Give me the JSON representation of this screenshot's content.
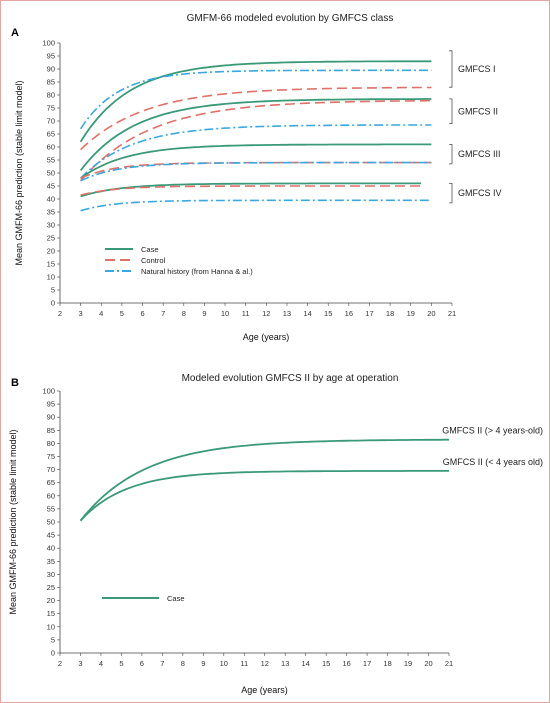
{
  "chart_data": [
    {
      "panel": "A",
      "type": "line",
      "title": "GMFM-66 modeled evolution by GMFCS class",
      "xlabel": "Age (years)",
      "ylabel": "Mean GMFM-66 prediction (stable limit model)",
      "xlim": [
        2,
        21
      ],
      "ylim": [
        0,
        100
      ],
      "xticks": [
        2,
        3,
        4,
        5,
        6,
        7,
        8,
        9,
        10,
        11,
        12,
        13,
        14,
        15,
        16,
        17,
        18,
        19,
        20,
        21
      ],
      "yticks": [
        0,
        5,
        10,
        15,
        20,
        25,
        30,
        35,
        40,
        45,
        50,
        55,
        60,
        65,
        70,
        75,
        80,
        85,
        90,
        95,
        100
      ],
      "legend": {
        "position": "lower-left",
        "entries": [
          {
            "label": "Case",
            "color": "#3a9a78",
            "style": "solid"
          },
          {
            "label": "Control",
            "color": "#e07068",
            "style": "dashed"
          },
          {
            "label": "Natural history (from Hanna & al.)",
            "color": "#3aa8e0",
            "style": "dashdot"
          }
        ]
      },
      "groups": [
        {
          "label": "GMFCS I",
          "ymin": 83,
          "ymax": 97
        },
        {
          "label": "GMFCS II",
          "ymin": 69,
          "ymax": 78.5
        },
        {
          "label": "GMFCS III",
          "ymin": 53.5,
          "ymax": 61
        },
        {
          "label": "GMFCS IV",
          "ymin": 38.5,
          "ymax": 46
        }
      ],
      "series": [
        {
          "group": "GMFCS I",
          "kind": "Case",
          "x0": 3,
          "x1": 20,
          "y0": 62,
          "limit": 93,
          "rate": 0.42
        },
        {
          "group": "GMFCS I",
          "kind": "Control",
          "x0": 3,
          "x1": 20,
          "y0": 59,
          "limit": 83,
          "rate": 0.32
        },
        {
          "group": "GMFCS I",
          "kind": "Natural history",
          "x0": 3,
          "x1": 20,
          "y0": 67,
          "limit": 89.5,
          "rate": 0.55
        },
        {
          "group": "GMFCS II",
          "kind": "Case",
          "x0": 3,
          "x1": 20,
          "y0": 51,
          "limit": 78.5,
          "rate": 0.38
        },
        {
          "group": "GMFCS II",
          "kind": "Control",
          "x0": 3,
          "x1": 20,
          "y0": 47,
          "limit": 78,
          "rate": 0.3
        },
        {
          "group": "GMFCS II",
          "kind": "Natural history",
          "x0": 3,
          "x1": 20,
          "y0": 48,
          "limit": 68.5,
          "rate": 0.4
        },
        {
          "group": "GMFCS III",
          "kind": "Case",
          "x0": 3,
          "x1": 20,
          "y0": 48,
          "limit": 61,
          "rate": 0.45
        },
        {
          "group": "GMFCS III",
          "kind": "Control",
          "x0": 3,
          "x1": 20,
          "y0": 48,
          "limit": 54,
          "rate": 0.6
        },
        {
          "group": "GMFCS III",
          "kind": "Natural history",
          "x0": 3,
          "x1": 20,
          "y0": 47,
          "limit": 54,
          "rate": 0.55
        },
        {
          "group": "GMFCS IV",
          "kind": "Case",
          "x0": 3,
          "x1": 19.5,
          "y0": 41,
          "limit": 46,
          "rate": 0.5
        },
        {
          "group": "GMFCS IV",
          "kind": "Control",
          "x0": 3,
          "x1": 19.5,
          "y0": 41.5,
          "limit": 45,
          "rate": 0.6
        },
        {
          "group": "GMFCS IV",
          "kind": "Natural history",
          "x0": 3,
          "x1": 20,
          "y0": 35.5,
          "limit": 39.5,
          "rate": 0.6
        }
      ]
    },
    {
      "panel": "B",
      "type": "line",
      "title": "Modeled evolution GMFCS II by age at operation",
      "xlabel": "Age (years)",
      "ylabel": "Mean GMFM-66 prediction (stable limit model)",
      "xlim": [
        2,
        21
      ],
      "ylim": [
        0,
        100
      ],
      "xticks": [
        2,
        3,
        4,
        5,
        6,
        7,
        8,
        9,
        10,
        11,
        12,
        13,
        14,
        15,
        16,
        17,
        18,
        19,
        20,
        21
      ],
      "yticks": [
        0,
        5,
        10,
        15,
        20,
        25,
        30,
        35,
        40,
        45,
        50,
        55,
        60,
        65,
        70,
        75,
        80,
        85,
        90,
        95,
        100
      ],
      "legend": {
        "position": "lower-left",
        "entries": [
          {
            "label": "Case",
            "color": "#3a9a78",
            "style": "solid"
          }
        ]
      },
      "series": [
        {
          "name": "GMFCS II (> 4 years-old)",
          "x0": 3,
          "x1": 21,
          "y0": 50.5,
          "limit": 81.5,
          "rate": 0.32
        },
        {
          "name": "GMFCS II (< 4 years old)",
          "x0": 3,
          "x1": 21,
          "y0": 50.5,
          "limit": 69.5,
          "rate": 0.45
        }
      ]
    }
  ],
  "colors": {
    "case": "#3a9a78",
    "control": "#e07068",
    "natural": "#3aa8e0",
    "frame": "#e0a8a0"
  }
}
